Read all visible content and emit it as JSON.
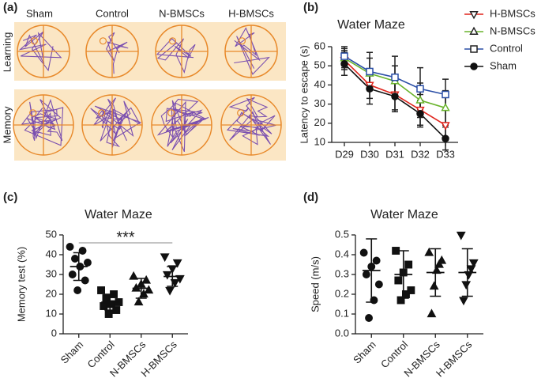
{
  "panel_a": {
    "label": "(a)",
    "columns": [
      "Sham",
      "Control",
      "N-BMSCs",
      "H-BMSCs"
    ],
    "rows": [
      "Learning",
      "Memory"
    ]
  },
  "chart_data": [
    {
      "type": "line",
      "panel": "(b)",
      "title": "Water Maze",
      "ylabel": "Latency to escape (s)",
      "categories": [
        "D29",
        "D30",
        "D31",
        "D32",
        "D33"
      ],
      "ylim": [
        10,
        60
      ],
      "yticks": [
        10,
        20,
        30,
        40,
        50,
        60
      ],
      "series": [
        {
          "name": "H-BMSCs",
          "color": "#e0241c",
          "marker": "triangle-down",
          "values": [
            53,
            40,
            35,
            27,
            19
          ],
          "errors": [
            5,
            7,
            8,
            8,
            8
          ]
        },
        {
          "name": "N-BMSCs",
          "color": "#6ab42d",
          "marker": "triangle-up",
          "values": [
            54,
            46,
            42,
            32,
            28
          ],
          "errors": [
            5,
            8,
            8,
            9,
            9
          ]
        },
        {
          "name": "Control",
          "color": "#2a4ea6",
          "marker": "square",
          "values": [
            55,
            47,
            44,
            38,
            35
          ],
          "errors": [
            5,
            10,
            11,
            11,
            8
          ]
        },
        {
          "name": "Sham",
          "color": "#111111",
          "marker": "circle",
          "values": [
            51,
            38,
            34,
            25,
            12
          ],
          "errors": [
            6,
            8,
            8,
            7,
            6
          ]
        }
      ]
    },
    {
      "type": "dot",
      "panel": "(c)",
      "title": "Water Maze",
      "ylabel": "Memory test (%)",
      "annotation": "***",
      "categories": [
        "Sham",
        "Control",
        "N-BMSCs",
        "H-BMSCs"
      ],
      "markers": [
        "circle",
        "square",
        "triangle-up",
        "triangle-down"
      ],
      "ylim": [
        0,
        50
      ],
      "yticks": [
        0,
        10,
        20,
        30,
        40,
        50
      ],
      "points": [
        [
          44,
          42,
          38,
          36,
          34,
          30,
          27,
          22
        ],
        [
          22,
          20,
          18,
          16,
          15,
          14,
          12,
          10
        ],
        [
          29,
          27,
          25,
          23,
          22,
          20,
          16
        ],
        [
          39,
          36,
          33,
          30,
          28,
          26,
          22
        ]
      ],
      "means": [
        34,
        16,
        23,
        29
      ],
      "sds": [
        7,
        4,
        5,
        5
      ]
    },
    {
      "type": "dot",
      "panel": "(d)",
      "title": "Water Maze",
      "ylabel": "Speed (m/s)",
      "categories": [
        "Sham",
        "Control",
        "N-BMSCs",
        "H-BMSCs"
      ],
      "markers": [
        "circle",
        "square",
        "triangle-up",
        "triangle-down"
      ],
      "ylim": [
        0,
        0.5
      ],
      "yticks": [
        {
          "value": 0,
          "label": "0.0"
        },
        0.1,
        0.2,
        0.3,
        0.4,
        0.5
      ],
      "points": [
        [
          0.41,
          0.37,
          0.34,
          0.3,
          0.25,
          0.17,
          0.08
        ],
        [
          0.42,
          0.35,
          0.31,
          0.27,
          0.22,
          0.2,
          0.17
        ],
        [
          0.41,
          0.37,
          0.35,
          0.32,
          0.24,
          0.1
        ],
        [
          0.5,
          0.36,
          0.33,
          0.3,
          0.25,
          0.17
        ]
      ],
      "means": [
        0.32,
        0.3,
        0.31,
        0.31
      ],
      "sds": [
        0.16,
        0.12,
        0.12,
        0.12
      ]
    }
  ]
}
